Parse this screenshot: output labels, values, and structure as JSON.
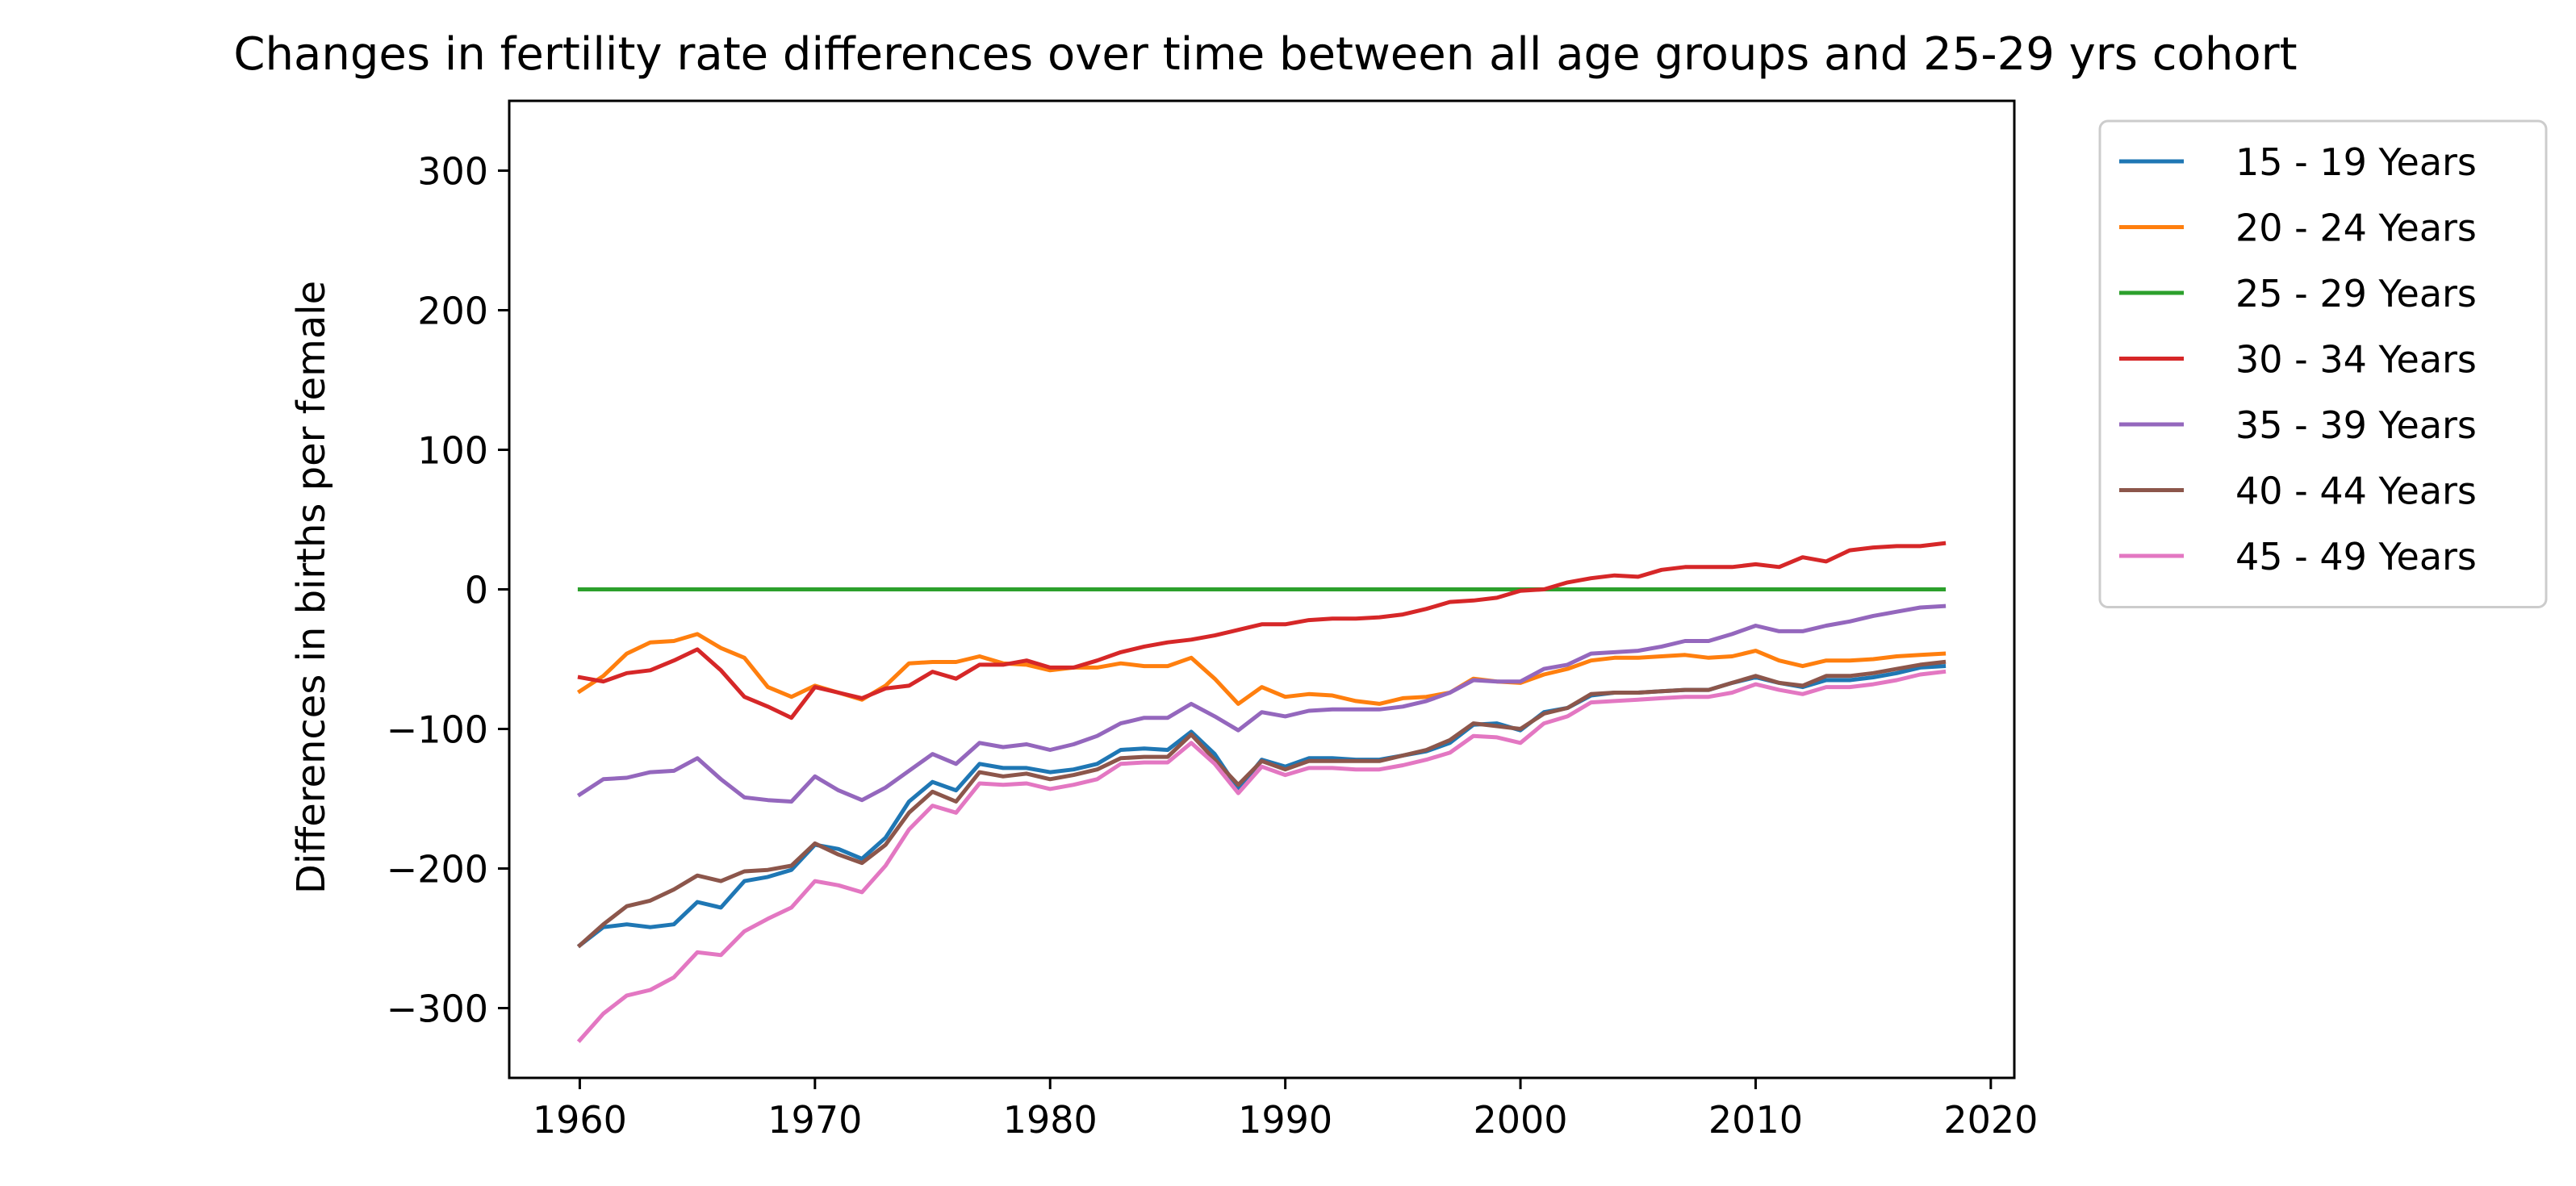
{
  "chart_data": {
    "type": "line",
    "title": "Changes in fertility rate differences over time between all age groups and 25-29 yrs cohort",
    "xlabel": "",
    "ylabel": "Differences in births per female",
    "xlim": [
      1957,
      2021
    ],
    "ylim": [
      -350,
      350
    ],
    "x_ticks": [
      1960,
      1970,
      1980,
      1990,
      2000,
      2010,
      2020
    ],
    "y_ticks": [
      -300,
      -200,
      -100,
      0,
      100,
      200,
      300
    ],
    "x_tick_labels": [
      "1960",
      "1970",
      "1980",
      "1990",
      "2000",
      "2010",
      "2020"
    ],
    "y_tick_labels": [
      "−300",
      "−200",
      "−100",
      "0",
      "100",
      "200",
      "300"
    ],
    "grid": false,
    "legend_position": "outside-top-right",
    "x_start": 1960,
    "x_end": 2018,
    "series": [
      {
        "name": "15 - 19 Years",
        "color": "#1f77b4",
        "values": [
          -255,
          -242,
          -240,
          -242,
          -240,
          -224,
          -228,
          -209,
          -206,
          -201,
          -183,
          -186,
          -193,
          -178,
          -152,
          -138,
          -144,
          -125,
          -128,
          -128,
          -131,
          -129,
          -125,
          -115,
          -114,
          -115,
          -102,
          -118,
          -143,
          -122,
          -127,
          -121,
          -121,
          -122,
          -122,
          -119,
          -116,
          -110,
          -97,
          -96,
          -101,
          -88,
          -85,
          -76,
          -74,
          -74,
          -73,
          -72,
          -72,
          -67,
          -63,
          -67,
          -70,
          -65,
          -65,
          -63,
          -60,
          -56,
          -55
        ]
      },
      {
        "name": "20 - 24 Years",
        "color": "#ff7f0e",
        "values": [
          -73,
          -62,
          -46,
          -38,
          -37,
          -32,
          -42,
          -49,
          -70,
          -77,
          -69,
          -74,
          -79,
          -69,
          -53,
          -52,
          -52,
          -48,
          -53,
          -54,
          -58,
          -56,
          -56,
          -53,
          -55,
          -55,
          -49,
          -64,
          -82,
          -70,
          -77,
          -75,
          -76,
          -80,
          -82,
          -78,
          -77,
          -74,
          -64,
          -66,
          -67,
          -61,
          -57,
          -51,
          -49,
          -49,
          -48,
          -47,
          -49,
          -48,
          -44,
          -51,
          -55,
          -51,
          -51,
          -50,
          -48,
          -47,
          -46
        ]
      },
      {
        "name": "25 - 29 Years",
        "color": "#2ca02c",
        "values": [
          0,
          0,
          0,
          0,
          0,
          0,
          0,
          0,
          0,
          0,
          0,
          0,
          0,
          0,
          0,
          0,
          0,
          0,
          0,
          0,
          0,
          0,
          0,
          0,
          0,
          0,
          0,
          0,
          0,
          0,
          0,
          0,
          0,
          0,
          0,
          0,
          0,
          0,
          0,
          0,
          0,
          0,
          0,
          0,
          0,
          0,
          0,
          0,
          0,
          0,
          0,
          0,
          0,
          0,
          0,
          0,
          0,
          0,
          0
        ]
      },
      {
        "name": "30 - 34 Years",
        "color": "#d62728",
        "values": [
          -63,
          -66,
          -60,
          -58,
          -51,
          -43,
          -58,
          -77,
          -84,
          -92,
          -70,
          -74,
          -78,
          -71,
          -69,
          -59,
          -64,
          -54,
          -54,
          -51,
          -56,
          -56,
          -51,
          -45,
          -41,
          -38,
          -36,
          -33,
          -29,
          -25,
          -25,
          -22,
          -21,
          -21,
          -20,
          -18,
          -14,
          -9,
          -8,
          -6,
          -1,
          0,
          5,
          8,
          10,
          9,
          14,
          16,
          16,
          16,
          18,
          16,
          23,
          20,
          28,
          30,
          31,
          31,
          33
        ]
      },
      {
        "name": "35 - 39 Years",
        "color": "#9467bd",
        "values": [
          -147,
          -136,
          -135,
          -131,
          -130,
          -121,
          -136,
          -149,
          -151,
          -152,
          -134,
          -144,
          -151,
          -142,
          -130,
          -118,
          -125,
          -110,
          -113,
          -111,
          -115,
          -111,
          -105,
          -96,
          -92,
          -92,
          -82,
          -91,
          -101,
          -88,
          -91,
          -87,
          -86,
          -86,
          -86,
          -84,
          -80,
          -74,
          -65,
          -66,
          -66,
          -57,
          -54,
          -46,
          -45,
          -44,
          -41,
          -37,
          -37,
          -32,
          -26,
          -30,
          -30,
          -26,
          -23,
          -19,
          -16,
          -13,
          -12
        ]
      },
      {
        "name": "40 - 44 Years",
        "color": "#8c564b",
        "values": [
          -255,
          -240,
          -227,
          -223,
          -215,
          -205,
          -209,
          -202,
          -201,
          -198,
          -182,
          -190,
          -196,
          -183,
          -160,
          -145,
          -152,
          -131,
          -134,
          -132,
          -136,
          -133,
          -129,
          -121,
          -120,
          -120,
          -104,
          -122,
          -140,
          -123,
          -129,
          -123,
          -123,
          -123,
          -123,
          -119,
          -115,
          -108,
          -96,
          -98,
          -100,
          -89,
          -85,
          -75,
          -74,
          -74,
          -73,
          -72,
          -72,
          -67,
          -62,
          -67,
          -69,
          -62,
          -62,
          -60,
          -57,
          -54,
          -52
        ]
      },
      {
        "name": "45 - 49 Years",
        "color": "#e377c2",
        "values": [
          -323,
          -304,
          -291,
          -287,
          -278,
          -260,
          -262,
          -245,
          -236,
          -228,
          -209,
          -212,
          -217,
          -198,
          -172,
          -155,
          -160,
          -139,
          -140,
          -139,
          -143,
          -140,
          -136,
          -125,
          -124,
          -124,
          -110,
          -125,
          -146,
          -127,
          -133,
          -128,
          -128,
          -129,
          -129,
          -126,
          -122,
          -117,
          -105,
          -106,
          -110,
          -96,
          -91,
          -81,
          -80,
          -79,
          -78,
          -77,
          -77,
          -74,
          -68,
          -72,
          -75,
          -70,
          -70,
          -68,
          -65,
          -61,
          -59
        ]
      }
    ]
  }
}
